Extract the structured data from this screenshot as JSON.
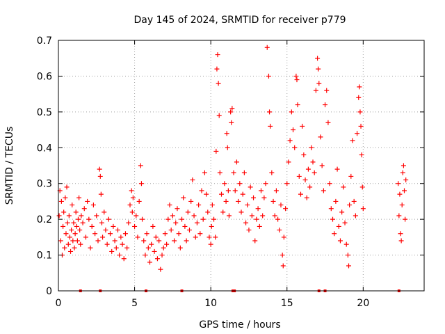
{
  "chart_data": {
    "type": "scatter",
    "title": "Day 145 of 2024, SRMTID for receiver p779",
    "xlabel": "GPS time / hours",
    "ylabel": "SRMTID / TECUs",
    "xlim": [
      0,
      24
    ],
    "ylim": [
      0,
      0.7
    ],
    "xticks": [
      0,
      5,
      10,
      15,
      20
    ],
    "yticks": [
      0,
      0.1,
      0.2,
      0.3,
      0.4,
      0.5,
      0.6,
      0.7
    ],
    "xtick_labels": [
      "0",
      "5",
      "10",
      "15",
      "20"
    ],
    "ytick_labels": [
      "0",
      "0.1",
      "0.2",
      "0.3",
      "0.4",
      "0.5",
      "0.6",
      "0.7"
    ],
    "grid": true,
    "marker": "+",
    "color": "#ff0000",
    "series": [
      {
        "name": "SRMTID",
        "points": [
          [
            0.05,
            0.21
          ],
          [
            0.1,
            0.28
          ],
          [
            0.15,
            0.14
          ],
          [
            0.2,
            0.25
          ],
          [
            0.25,
            0.1
          ],
          [
            0.3,
            0.18
          ],
          [
            0.35,
            0.22
          ],
          [
            0.4,
            0.12
          ],
          [
            0.45,
            0.26
          ],
          [
            0.5,
            0.16
          ],
          [
            0.55,
            0.29
          ],
          [
            0.6,
            0.19
          ],
          [
            0.65,
            0.13
          ],
          [
            0.7,
            0.21
          ],
          [
            0.75,
            0.15
          ],
          [
            0.8,
            0.11
          ],
          [
            0.85,
            0.17
          ],
          [
            0.9,
            0.24
          ],
          [
            0.95,
            0.14
          ],
          [
            1.0,
            0.19
          ],
          [
            1.05,
            0.12
          ],
          [
            1.1,
            0.16
          ],
          [
            1.15,
            0.22
          ],
          [
            1.2,
            0.18
          ],
          [
            1.25,
            0.14
          ],
          [
            1.3,
            0.2
          ],
          [
            1.35,
            0.26
          ],
          [
            1.4,
            0.17
          ],
          [
            1.45,
            0.13
          ],
          [
            1.5,
            0.21
          ],
          [
            1.6,
            0.19
          ],
          [
            1.7,
            0.23
          ],
          [
            1.8,
            0.15
          ],
          [
            1.9,
            0.25
          ],
          [
            2.0,
            0.2
          ],
          [
            2.1,
            0.12
          ],
          [
            2.2,
            0.18
          ],
          [
            2.3,
            0.24
          ],
          [
            2.4,
            0.16
          ],
          [
            2.5,
            0.21
          ],
          [
            2.6,
            0.14
          ],
          [
            2.7,
            0.34
          ],
          [
            2.75,
            0.32
          ],
          [
            2.8,
            0.27
          ],
          [
            2.85,
            0.19
          ],
          [
            2.9,
            0.15
          ],
          [
            3.0,
            0.22
          ],
          [
            3.1,
            0.17
          ],
          [
            3.2,
            0.13
          ],
          [
            3.3,
            0.2
          ],
          [
            3.4,
            0.16
          ],
          [
            3.5,
            0.11
          ],
          [
            3.6,
            0.18
          ],
          [
            3.7,
            0.14
          ],
          [
            3.8,
            0.12
          ],
          [
            3.9,
            0.17
          ],
          [
            4.0,
            0.1
          ],
          [
            4.1,
            0.15
          ],
          [
            4.2,
            0.13
          ],
          [
            4.3,
            0.09
          ],
          [
            4.4,
            0.16
          ],
          [
            4.5,
            0.12
          ],
          [
            4.6,
            0.19
          ],
          [
            4.7,
            0.24
          ],
          [
            4.8,
            0.28
          ],
          [
            4.85,
            0.22
          ],
          [
            4.9,
            0.26
          ],
          [
            5.0,
            0.18
          ],
          [
            5.1,
            0.21
          ],
          [
            5.2,
            0.15
          ],
          [
            5.3,
            0.25
          ],
          [
            5.4,
            0.35
          ],
          [
            5.45,
            0.3
          ],
          [
            5.5,
            0.2
          ],
          [
            5.6,
            0.14
          ],
          [
            5.7,
            0.1
          ],
          [
            5.8,
            0.16
          ],
          [
            5.9,
            0.12
          ],
          [
            6.0,
            0.08
          ],
          [
            6.1,
            0.13
          ],
          [
            6.2,
            0.18
          ],
          [
            6.3,
            0.11
          ],
          [
            6.4,
            0.15
          ],
          [
            6.5,
            0.09
          ],
          [
            6.6,
            0.14
          ],
          [
            6.7,
            0.06
          ],
          [
            6.8,
            0.1
          ],
          [
            6.9,
            0.12
          ],
          [
            7.0,
            0.16
          ],
          [
            7.1,
            0.13
          ],
          [
            7.2,
            0.2
          ],
          [
            7.3,
            0.24
          ],
          [
            7.4,
            0.17
          ],
          [
            7.5,
            0.21
          ],
          [
            7.6,
            0.14
          ],
          [
            7.7,
            0.19
          ],
          [
            7.8,
            0.23
          ],
          [
            7.9,
            0.16
          ],
          [
            8.0,
            0.12
          ],
          [
            8.1,
            0.2
          ],
          [
            8.2,
            0.26
          ],
          [
            8.3,
            0.18
          ],
          [
            8.4,
            0.14
          ],
          [
            8.5,
            0.22
          ],
          [
            8.6,
            0.17
          ],
          [
            8.7,
            0.25
          ],
          [
            8.8,
            0.31
          ],
          [
            8.9,
            0.21
          ],
          [
            9.0,
            0.15
          ],
          [
            9.1,
            0.19
          ],
          [
            9.2,
            0.24
          ],
          [
            9.3,
            0.16
          ],
          [
            9.4,
            0.28
          ],
          [
            9.5,
            0.2
          ],
          [
            9.6,
            0.33
          ],
          [
            9.7,
            0.27
          ],
          [
            9.8,
            0.22
          ],
          [
            9.9,
            0.15
          ],
          [
            10.0,
            0.13
          ],
          [
            10.05,
            0.18
          ],
          [
            10.1,
            0.24
          ],
          [
            10.2,
            0.2
          ],
          [
            10.3,
            0.15
          ],
          [
            10.35,
            0.39
          ],
          [
            10.4,
            0.62
          ],
          [
            10.45,
            0.66
          ],
          [
            10.5,
            0.58
          ],
          [
            10.55,
            0.49
          ],
          [
            10.6,
            0.33
          ],
          [
            10.7,
            0.27
          ],
          [
            10.8,
            0.22
          ],
          [
            10.9,
            0.3
          ],
          [
            11.0,
            0.25
          ],
          [
            11.05,
            0.44
          ],
          [
            11.1,
            0.4
          ],
          [
            11.15,
            0.28
          ],
          [
            11.2,
            0.21
          ],
          [
            11.3,
            0.5
          ],
          [
            11.35,
            0.47
          ],
          [
            11.4,
            0.51
          ],
          [
            11.5,
            0.33
          ],
          [
            11.6,
            0.28
          ],
          [
            11.7,
            0.36
          ],
          [
            11.8,
            0.25
          ],
          [
            11.9,
            0.3
          ],
          [
            12.0,
            0.22
          ],
          [
            12.1,
            0.27
          ],
          [
            12.2,
            0.33
          ],
          [
            12.3,
            0.19
          ],
          [
            12.4,
            0.24
          ],
          [
            12.5,
            0.17
          ],
          [
            12.6,
            0.29
          ],
          [
            12.7,
            0.21
          ],
          [
            12.8,
            0.26
          ],
          [
            12.9,
            0.14
          ],
          [
            13.0,
            0.2
          ],
          [
            13.1,
            0.23
          ],
          [
            13.2,
            0.18
          ],
          [
            13.3,
            0.28
          ],
          [
            13.4,
            0.21
          ],
          [
            13.5,
            0.26
          ],
          [
            13.6,
            0.3
          ],
          [
            13.7,
            0.68
          ],
          [
            13.8,
            0.6
          ],
          [
            13.85,
            0.5
          ],
          [
            13.9,
            0.46
          ],
          [
            14.0,
            0.33
          ],
          [
            14.1,
            0.25
          ],
          [
            14.2,
            0.21
          ],
          [
            14.3,
            0.28
          ],
          [
            14.4,
            0.2
          ],
          [
            14.5,
            0.17
          ],
          [
            14.6,
            0.24
          ],
          [
            14.7,
            0.1
          ],
          [
            14.75,
            0.07
          ],
          [
            14.8,
            0.15
          ],
          [
            14.9,
            0.23
          ],
          [
            15.0,
            0.3
          ],
          [
            15.1,
            0.36
          ],
          [
            15.2,
            0.42
          ],
          [
            15.3,
            0.5
          ],
          [
            15.4,
            0.45
          ],
          [
            15.5,
            0.4
          ],
          [
            15.6,
            0.6
          ],
          [
            15.65,
            0.59
          ],
          [
            15.7,
            0.52
          ],
          [
            15.8,
            0.32
          ],
          [
            15.9,
            0.27
          ],
          [
            16.0,
            0.46
          ],
          [
            16.1,
            0.38
          ],
          [
            16.2,
            0.31
          ],
          [
            16.3,
            0.26
          ],
          [
            16.4,
            0.34
          ],
          [
            16.5,
            0.29
          ],
          [
            16.6,
            0.4
          ],
          [
            16.7,
            0.36
          ],
          [
            16.8,
            0.33
          ],
          [
            16.9,
            0.56
          ],
          [
            17.0,
            0.65
          ],
          [
            17.05,
            0.62
          ],
          [
            17.1,
            0.58
          ],
          [
            17.2,
            0.43
          ],
          [
            17.3,
            0.35
          ],
          [
            17.4,
            0.28
          ],
          [
            17.5,
            0.52
          ],
          [
            17.6,
            0.56
          ],
          [
            17.7,
            0.47
          ],
          [
            17.8,
            0.3
          ],
          [
            17.9,
            0.23
          ],
          [
            18.0,
            0.2
          ],
          [
            18.1,
            0.16
          ],
          [
            18.2,
            0.25
          ],
          [
            18.3,
            0.34
          ],
          [
            18.4,
            0.18
          ],
          [
            18.5,
            0.14
          ],
          [
            18.6,
            0.22
          ],
          [
            18.7,
            0.29
          ],
          [
            18.8,
            0.19
          ],
          [
            18.9,
            0.13
          ],
          [
            19.0,
            0.1
          ],
          [
            19.05,
            0.07
          ],
          [
            19.1,
            0.24
          ],
          [
            19.2,
            0.32
          ],
          [
            19.3,
            0.42
          ],
          [
            19.4,
            0.25
          ],
          [
            19.5,
            0.21
          ],
          [
            19.6,
            0.44
          ],
          [
            19.7,
            0.54
          ],
          [
            19.75,
            0.57
          ],
          [
            19.8,
            0.5
          ],
          [
            19.85,
            0.46
          ],
          [
            19.9,
            0.38
          ],
          [
            19.95,
            0.29
          ],
          [
            20.0,
            0.23
          ],
          [
            22.3,
            0.3
          ],
          [
            22.35,
            0.21
          ],
          [
            22.4,
            0.27
          ],
          [
            22.45,
            0.16
          ],
          [
            22.5,
            0.14
          ],
          [
            22.55,
            0.24
          ],
          [
            22.6,
            0.33
          ],
          [
            22.65,
            0.35
          ],
          [
            22.7,
            0.28
          ],
          [
            22.75,
            0.2
          ],
          [
            22.8,
            0.31
          ]
        ]
      }
    ],
    "baseline_markers_x": [
      1.45,
      2.75,
      5.75,
      8.1,
      11.45,
      11.55,
      17.1,
      17.5,
      22.35
    ]
  }
}
